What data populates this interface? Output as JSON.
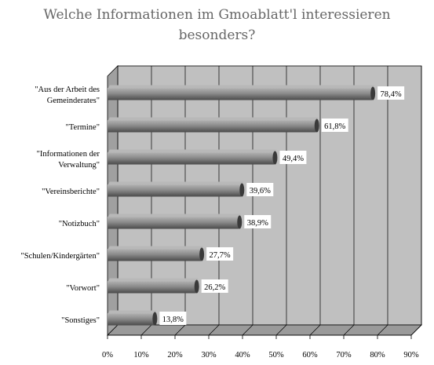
{
  "chart_data": {
    "type": "bar",
    "orientation": "horizontal",
    "title_lines": [
      "Welche Informationen im Gmoablatt'l interessieren",
      "besonders?"
    ],
    "categories": [
      [
        "\"Aus der Arbeit des",
        "Gemeinderates\""
      ],
      [
        "\"Termine\""
      ],
      [
        "\"Informationen der",
        "Verwaltung\""
      ],
      [
        "\"Vereinsberichte\""
      ],
      [
        "\"Notizbuch\""
      ],
      [
        "\"Schulen/Kindergärten\""
      ],
      [
        "\"Vorwort\""
      ],
      [
        "\"Sonstiges\""
      ]
    ],
    "values": [
      78.4,
      61.8,
      49.4,
      39.6,
      38.9,
      27.7,
      26.2,
      13.8
    ],
    "value_labels": [
      "78,4%",
      "61,8%",
      "49,4%",
      "39,6%",
      "38,9%",
      "27,7%",
      "26,2%",
      "13,8%"
    ],
    "x_ticks": [
      "0%",
      "10%",
      "20%",
      "30%",
      "40%",
      "50%",
      "60%",
      "70%",
      "80%",
      "90%"
    ],
    "xlim": [
      0,
      90
    ],
    "grid": true,
    "colors": {
      "plot_bg": "#c0c0c0",
      "wall": "#a0a0a0",
      "bar": "#808080",
      "bar_light": "#9c9c9c",
      "bar_dark": "#4d4d4d",
      "title": "#666666"
    }
  }
}
